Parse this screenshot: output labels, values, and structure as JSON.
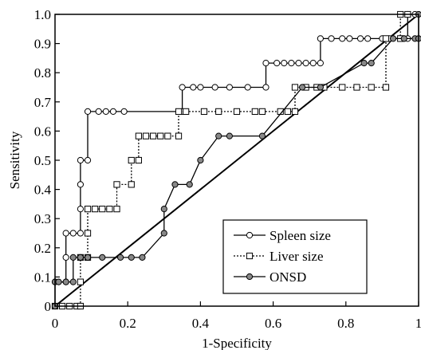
{
  "chart_data": {
    "type": "line",
    "xlabel": "1-Specificity",
    "ylabel": "Sensitivity",
    "xlim": [
      0,
      1
    ],
    "ylim": [
      0,
      1
    ],
    "x_ticks": [
      "0",
      "0.2",
      "0.4",
      "0.6",
      "0.8",
      "1"
    ],
    "y_ticks": [
      "0",
      "0.1",
      "0.2",
      "0.3",
      "0.4",
      "0.5",
      "0.6",
      "0.7",
      "0.8",
      "0.9",
      "1.0"
    ],
    "grid": false,
    "legend_position": "bottom-right",
    "reference_line": [
      [
        0,
        0
      ],
      [
        1,
        1
      ]
    ],
    "series": [
      {
        "name": "Spleen size",
        "line_style": "solid",
        "marker": "circle",
        "marker_fill": "#ffffff",
        "points": [
          [
            0.0,
            0.083
          ],
          [
            0.03,
            0.083
          ],
          [
            0.03,
            0.167
          ],
          [
            0.03,
            0.25
          ],
          [
            0.05,
            0.25
          ],
          [
            0.07,
            0.25
          ],
          [
            0.07,
            0.333
          ],
          [
            0.07,
            0.417
          ],
          [
            0.07,
            0.5
          ],
          [
            0.09,
            0.5
          ],
          [
            0.09,
            0.667
          ],
          [
            0.12,
            0.667
          ],
          [
            0.14,
            0.667
          ],
          [
            0.16,
            0.667
          ],
          [
            0.19,
            0.667
          ],
          [
            0.35,
            0.667
          ],
          [
            0.35,
            0.75
          ],
          [
            0.38,
            0.75
          ],
          [
            0.4,
            0.75
          ],
          [
            0.44,
            0.75
          ],
          [
            0.48,
            0.75
          ],
          [
            0.53,
            0.75
          ],
          [
            0.58,
            0.75
          ],
          [
            0.58,
            0.833
          ],
          [
            0.61,
            0.833
          ],
          [
            0.63,
            0.833
          ],
          [
            0.65,
            0.833
          ],
          [
            0.67,
            0.833
          ],
          [
            0.69,
            0.833
          ],
          [
            0.71,
            0.833
          ],
          [
            0.73,
            0.833
          ],
          [
            0.73,
            0.917
          ],
          [
            0.76,
            0.917
          ],
          [
            0.79,
            0.917
          ],
          [
            0.81,
            0.917
          ],
          [
            0.84,
            0.917
          ],
          [
            0.86,
            0.917
          ],
          [
            0.9,
            0.917
          ],
          [
            0.92,
            0.917
          ],
          [
            0.95,
            0.917
          ],
          [
            0.97,
            0.917
          ],
          [
            0.97,
            1.0
          ],
          [
            0.99,
            1.0
          ]
        ]
      },
      {
        "name": "Liver size",
        "line_style": "dotted",
        "marker": "square",
        "marker_fill": "#ffffff",
        "points": [
          [
            0.0,
            0.0
          ],
          [
            0.02,
            0.0
          ],
          [
            0.04,
            0.0
          ],
          [
            0.06,
            0.0
          ],
          [
            0.07,
            0.0
          ],
          [
            0.07,
            0.083
          ],
          [
            0.07,
            0.167
          ],
          [
            0.09,
            0.167
          ],
          [
            0.09,
            0.25
          ],
          [
            0.09,
            0.333
          ],
          [
            0.11,
            0.333
          ],
          [
            0.13,
            0.333
          ],
          [
            0.15,
            0.333
          ],
          [
            0.17,
            0.333
          ],
          [
            0.17,
            0.417
          ],
          [
            0.21,
            0.417
          ],
          [
            0.21,
            0.5
          ],
          [
            0.23,
            0.5
          ],
          [
            0.23,
            0.583
          ],
          [
            0.25,
            0.583
          ],
          [
            0.27,
            0.583
          ],
          [
            0.29,
            0.583
          ],
          [
            0.31,
            0.583
          ],
          [
            0.34,
            0.583
          ],
          [
            0.34,
            0.667
          ],
          [
            0.36,
            0.667
          ],
          [
            0.41,
            0.667
          ],
          [
            0.45,
            0.667
          ],
          [
            0.5,
            0.667
          ],
          [
            0.55,
            0.667
          ],
          [
            0.57,
            0.667
          ],
          [
            0.62,
            0.667
          ],
          [
            0.64,
            0.667
          ],
          [
            0.66,
            0.667
          ],
          [
            0.66,
            0.75
          ],
          [
            0.69,
            0.75
          ],
          [
            0.72,
            0.75
          ],
          [
            0.74,
            0.75
          ],
          [
            0.79,
            0.75
          ],
          [
            0.83,
            0.75
          ],
          [
            0.87,
            0.75
          ],
          [
            0.91,
            0.75
          ],
          [
            0.91,
            0.917
          ],
          [
            0.95,
            0.917
          ],
          [
            0.95,
            1.0
          ],
          [
            0.97,
            1.0
          ]
        ]
      },
      {
        "name": "ONSD",
        "line_style": "solid",
        "marker": "circle",
        "marker_fill": "#888888",
        "points": [
          [
            0.0,
            0.0
          ],
          [
            0.0,
            0.083
          ],
          [
            0.01,
            0.083
          ],
          [
            0.03,
            0.083
          ],
          [
            0.05,
            0.083
          ],
          [
            0.05,
            0.167
          ],
          [
            0.07,
            0.167
          ],
          [
            0.09,
            0.167
          ],
          [
            0.13,
            0.167
          ],
          [
            0.18,
            0.167
          ],
          [
            0.21,
            0.167
          ],
          [
            0.24,
            0.167
          ],
          [
            0.3,
            0.25
          ],
          [
            0.3,
            0.333
          ],
          [
            0.33,
            0.417
          ],
          [
            0.37,
            0.417
          ],
          [
            0.4,
            0.5
          ],
          [
            0.45,
            0.583
          ],
          [
            0.48,
            0.583
          ],
          [
            0.57,
            0.583
          ],
          [
            0.68,
            0.75
          ],
          [
            0.73,
            0.75
          ],
          [
            0.85,
            0.833
          ],
          [
            0.87,
            0.833
          ],
          [
            0.93,
            0.917
          ],
          [
            0.96,
            0.917
          ],
          [
            0.99,
            0.917
          ],
          [
            1.0,
            0.917
          ],
          [
            1.0,
            1.0
          ]
        ]
      }
    ]
  }
}
